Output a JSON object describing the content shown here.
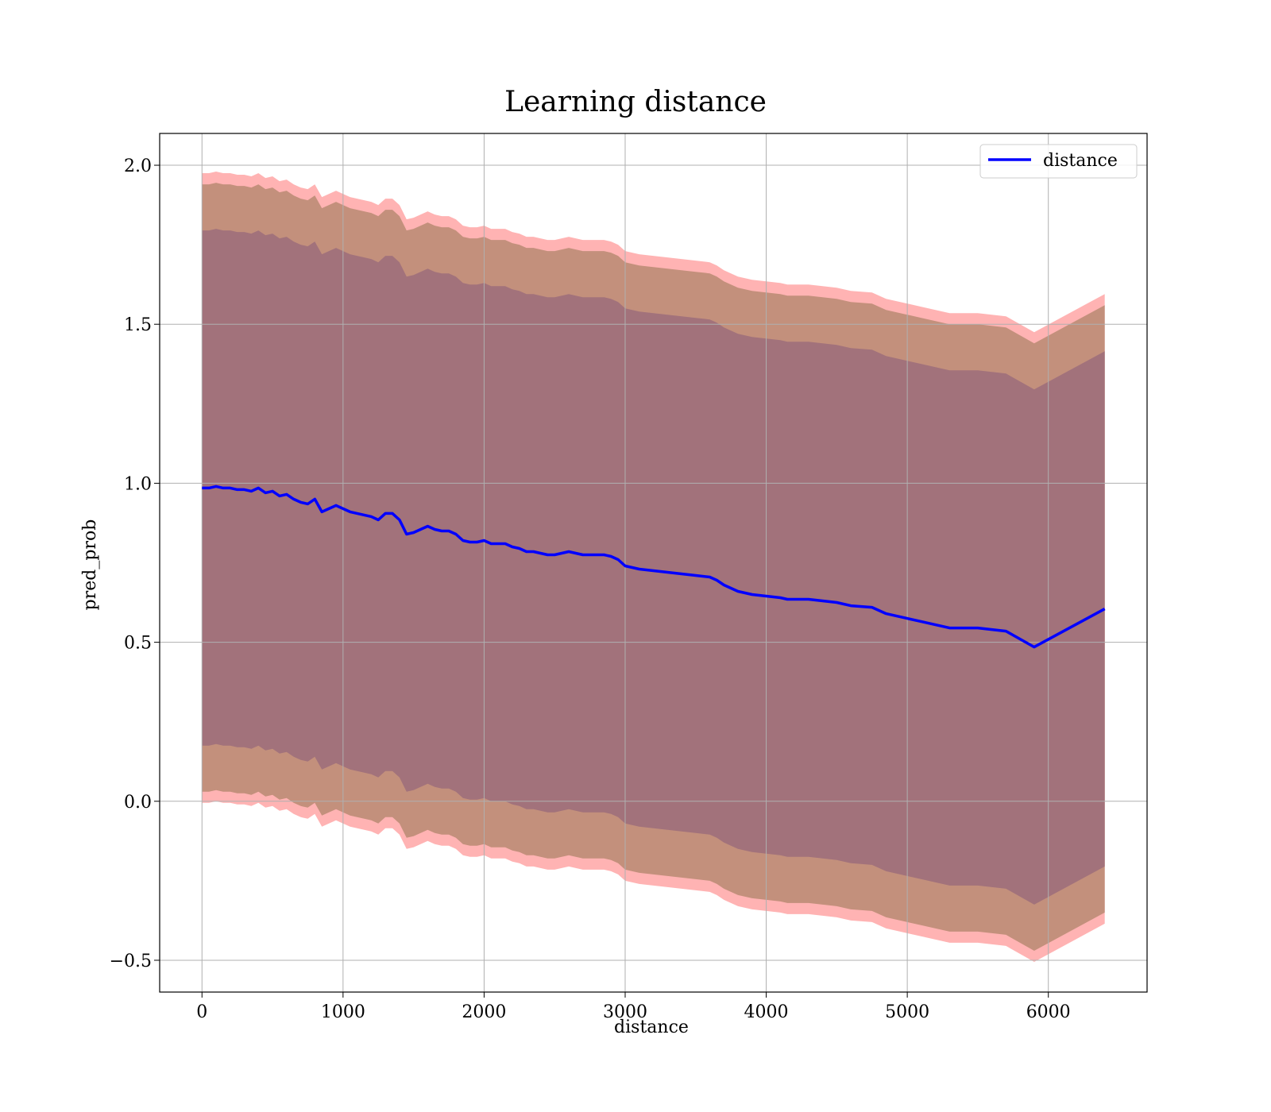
{
  "chart_data": {
    "type": "line",
    "title": "Learning distance",
    "xlabel": "distance",
    "ylabel": "pred_prob",
    "xlim": [
      -300,
      6700
    ],
    "ylim": [
      -0.6,
      2.1
    ],
    "xticks": [
      0,
      1000,
      2000,
      3000,
      4000,
      5000,
      6000
    ],
    "xtick_labels": [
      "0",
      "1000",
      "2000",
      "3000",
      "4000",
      "5000",
      "6000"
    ],
    "yticks": [
      -0.5,
      0.0,
      0.5,
      1.0,
      1.5,
      2.0
    ],
    "ytick_labels": [
      "−0.5",
      "0.0",
      "0.5",
      "1.0",
      "1.5",
      "2.0"
    ],
    "grid": true,
    "legend_position": "top-right",
    "colors": {
      "line": "#0000ff",
      "band_outer": "#ff9a9a",
      "band_middle": "#b88a72",
      "band_inner": "#a0717b"
    },
    "series": [
      {
        "name": "distance",
        "x": [
          0,
          50,
          100,
          150,
          200,
          250,
          300,
          350,
          400,
          450,
          500,
          550,
          600,
          650,
          700,
          750,
          800,
          850,
          900,
          950,
          1000,
          1050,
          1100,
          1150,
          1200,
          1250,
          1300,
          1350,
          1400,
          1450,
          1500,
          1550,
          1600,
          1650,
          1700,
          1750,
          1800,
          1850,
          1900,
          1950,
          2000,
          2050,
          2100,
          2150,
          2200,
          2250,
          2300,
          2350,
          2400,
          2450,
          2500,
          2550,
          2600,
          2650,
          2700,
          2750,
          2800,
          2850,
          2900,
          2950,
          3000,
          3100,
          3200,
          3300,
          3400,
          3500,
          3600,
          3650,
          3700,
          3800,
          3900,
          4000,
          4100,
          4150,
          4300,
          4400,
          4500,
          4600,
          4750,
          4850,
          5000,
          5100,
          5300,
          5500,
          5700,
          5900,
          6400
        ],
        "y": [
          0.985,
          0.985,
          0.99,
          0.985,
          0.985,
          0.98,
          0.98,
          0.975,
          0.985,
          0.97,
          0.975,
          0.96,
          0.965,
          0.95,
          0.94,
          0.935,
          0.95,
          0.91,
          0.92,
          0.93,
          0.92,
          0.91,
          0.905,
          0.9,
          0.895,
          0.885,
          0.905,
          0.905,
          0.885,
          0.84,
          0.845,
          0.855,
          0.865,
          0.855,
          0.85,
          0.85,
          0.84,
          0.82,
          0.815,
          0.815,
          0.82,
          0.81,
          0.81,
          0.81,
          0.8,
          0.795,
          0.785,
          0.785,
          0.78,
          0.775,
          0.775,
          0.78,
          0.785,
          0.78,
          0.775,
          0.775,
          0.775,
          0.775,
          0.77,
          0.76,
          0.74,
          0.73,
          0.725,
          0.72,
          0.715,
          0.71,
          0.705,
          0.695,
          0.68,
          0.66,
          0.65,
          0.645,
          0.64,
          0.635,
          0.635,
          0.63,
          0.625,
          0.615,
          0.61,
          0.59,
          0.575,
          0.565,
          0.545,
          0.545,
          0.535,
          0.485,
          0.605
        ]
      }
    ],
    "bands": [
      {
        "level": "outer",
        "offset_upper": 0.99,
        "offset_lower": 0.99
      },
      {
        "level": "middle",
        "offset_upper": 0.955,
        "offset_lower": 0.955
      },
      {
        "level": "inner",
        "offset_upper": 0.81,
        "offset_lower": 0.81
      }
    ]
  }
}
